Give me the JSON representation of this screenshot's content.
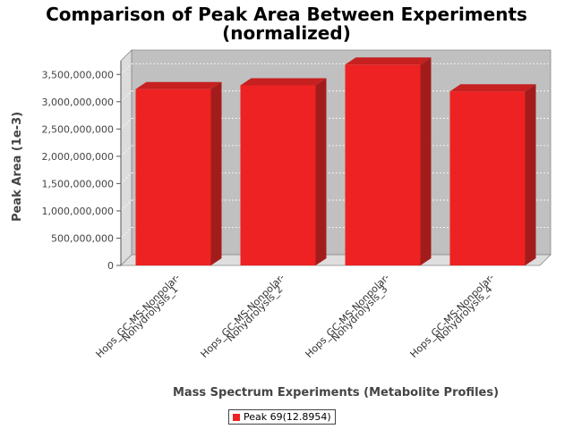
{
  "chart_data": {
    "type": "bar",
    "title_line1": "Comparison of Peak Area Between Experiments",
    "title_line2": "(normalized)",
    "xlabel": "Mass Spectrum Experiments (Metabolite Profiles)",
    "ylabel": "Peak Area (1e-3)",
    "categories": [
      [
        "Hops_GC-MS-Nonpolar-",
        "Nohydrolysis_1"
      ],
      [
        "Hops_GC-MS-Nonpolar-",
        "Nohydrolysis_2"
      ],
      [
        "Hops_GC-MS-Nonpolar-",
        "Nohydrolysis_3"
      ],
      [
        "Hops_GC-MS-Nonpolar-",
        "Nohydrolysis_4"
      ]
    ],
    "series": [
      {
        "name": "Peak 69(12.8954)",
        "color": "#ee2222",
        "values": [
          3230000000,
          3300000000,
          3680000000,
          3190000000
        ]
      }
    ],
    "ylim": [
      0,
      3750000000
    ],
    "yticks": [
      0,
      500000000,
      1000000000,
      1500000000,
      2000000000,
      2500000000,
      3000000000,
      3500000000
    ],
    "ytick_labels": [
      "0",
      "500,000,000",
      "1,000,000,000",
      "1,500,000,000",
      "2,000,000,000",
      "2,500,000,000",
      "3,000,000,000",
      "3,500,000,000"
    ],
    "grid": true,
    "legend_position": "bottom-center",
    "plot_background": "#c0c0c0"
  }
}
